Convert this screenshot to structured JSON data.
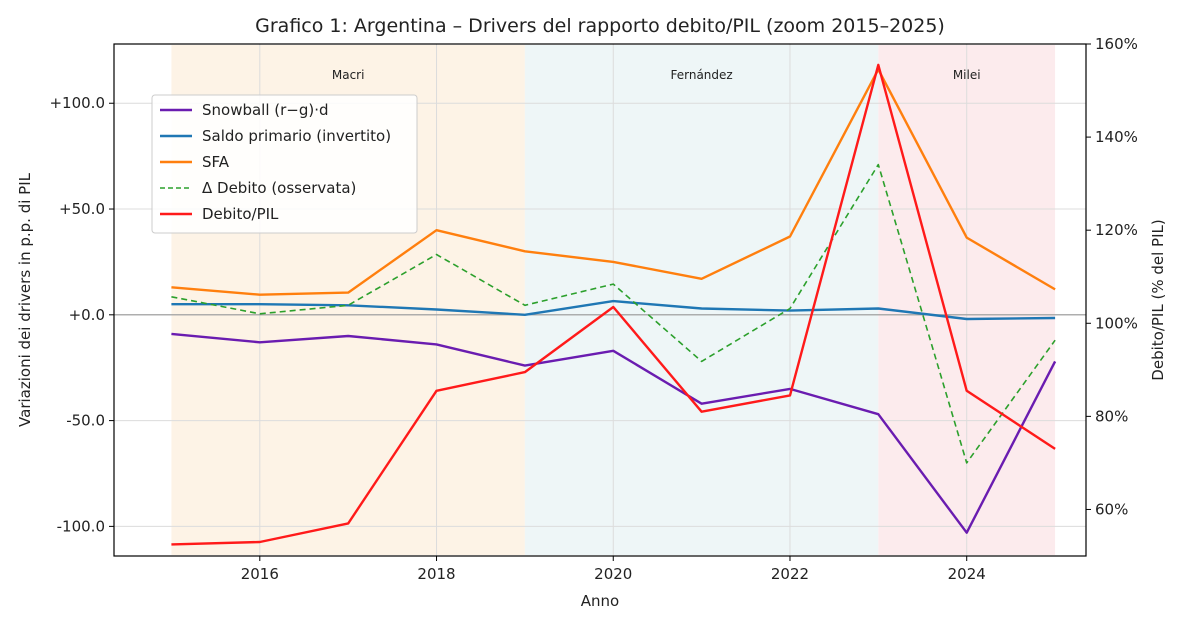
{
  "chart_data": {
    "type": "line",
    "title": "Grafico 1: Argentina – Drivers del rapporto debito/PIL (zoom 2015–2025)",
    "xlabel": "Anno",
    "ylabel_left": "Variazioni dei drivers in p.p. di PIL",
    "ylabel_right": "Debito/PIL (% del PIL)",
    "xlim": [
      2014.35,
      2025.35
    ],
    "ylim_left": [
      -114,
      128
    ],
    "ylim_right": [
      50,
      160
    ],
    "x": [
      2015,
      2016,
      2017,
      2018,
      2019,
      2020,
      2021,
      2022,
      2023,
      2024,
      2025
    ],
    "x_ticks": [
      2016,
      2018,
      2020,
      2022,
      2024
    ],
    "x_tick_labels": [
      "2016",
      "2018",
      "2020",
      "2022",
      "2024"
    ],
    "y_left_ticks": [
      100,
      50,
      0,
      -50,
      -100
    ],
    "y_left_tick_labels": [
      "+100.0",
      "+50.0",
      "+0.0",
      "-50.0",
      "-100.0"
    ],
    "y_right_ticks": [
      60,
      80,
      100,
      120,
      140,
      160
    ],
    "y_right_tick_labels": [
      "60%",
      "80%",
      "100%",
      "120%",
      "140%",
      "160%"
    ],
    "grid": true,
    "legend_position": "upper-left",
    "eras": [
      {
        "label": "Macri",
        "start": 2015,
        "end": 2019,
        "color": "#fdf3e6"
      },
      {
        "label": "Fernández",
        "start": 2019,
        "end": 2023,
        "color": "#eef6f7"
      },
      {
        "label": "Milei",
        "start": 2023,
        "end": 2025,
        "color": "#fcebed"
      }
    ],
    "series": [
      {
        "name": "Snowball (r−g)·d",
        "axis": "left",
        "color": "#6a1cb0",
        "dash": "solid",
        "values": [
          -9,
          -13,
          -10,
          -14,
          -24,
          -17,
          -42,
          -35,
          -47,
          -103,
          -22
        ]
      },
      {
        "name": "Saldo primario (invertito)",
        "axis": "left",
        "color": "#1f77b4",
        "dash": "solid",
        "values": [
          5,
          5,
          4.5,
          2.5,
          0,
          6.5,
          3,
          2,
          3,
          -2,
          -1.5
        ]
      },
      {
        "name": "SFA",
        "axis": "left",
        "color": "#ff7f0e",
        "dash": "solid",
        "values": [
          13,
          9.5,
          10.5,
          40,
          30,
          25,
          17,
          37,
          116,
          36.5,
          12
        ]
      },
      {
        "name": "Δ Debito (osservata)",
        "axis": "left",
        "color": "#2ca02c",
        "dash": "dashed",
        "values": [
          8.5,
          0.5,
          4.5,
          28.5,
          4.5,
          14.5,
          -22,
          3,
          71,
          -70,
          -12
        ]
      },
      {
        "name": "Debito/PIL",
        "axis": "right",
        "color": "#ff1a1a",
        "dash": "solid",
        "values": [
          52.5,
          53,
          57,
          85.5,
          89.5,
          103.5,
          81,
          84.5,
          155.5,
          85.5,
          73
        ]
      }
    ]
  }
}
